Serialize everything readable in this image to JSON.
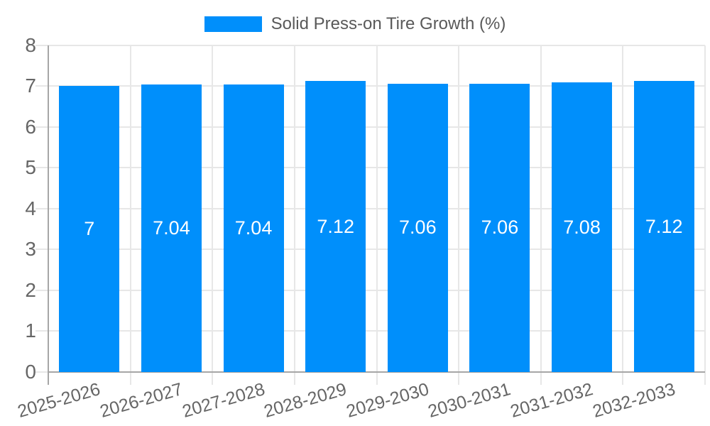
{
  "chart_data": {
    "type": "bar",
    "title": "Solid Press-on Tire Growth (%)",
    "legend": {
      "position": "top",
      "label": "Solid Press-on Tire Growth (%)",
      "marker_color": "#008FFB"
    },
    "categories": [
      "2025-2026",
      "2026-2027",
      "2027-2028",
      "2028-2029",
      "2029-2030",
      "2030-2031",
      "2031-2032",
      "2032-2033"
    ],
    "values": [
      7,
      7.04,
      7.04,
      7.12,
      7.06,
      7.06,
      7.08,
      7.12
    ],
    "value_labels": [
      "7",
      "7.04",
      "7.04",
      "7.12",
      "7.06",
      "7.06",
      "7.08",
      "7.12"
    ],
    "series_name": "Solid Press-on Tire Growth (%)",
    "xlabel": "",
    "ylabel": "",
    "ylim": [
      0,
      8
    ],
    "yticks": [
      0,
      1,
      2,
      3,
      4,
      5,
      6,
      7,
      8
    ],
    "grid": true,
    "bar_color": "#008FFB",
    "colors": {
      "bar": "#008FFB",
      "grid": "#e7e7e7",
      "axis": "#a6a6a6",
      "y_tick_text": "#666666",
      "x_tick_text": "#666666",
      "value_label_text": "#ffffff",
      "legend_text": "#595959",
      "background": "#ffffff"
    }
  }
}
